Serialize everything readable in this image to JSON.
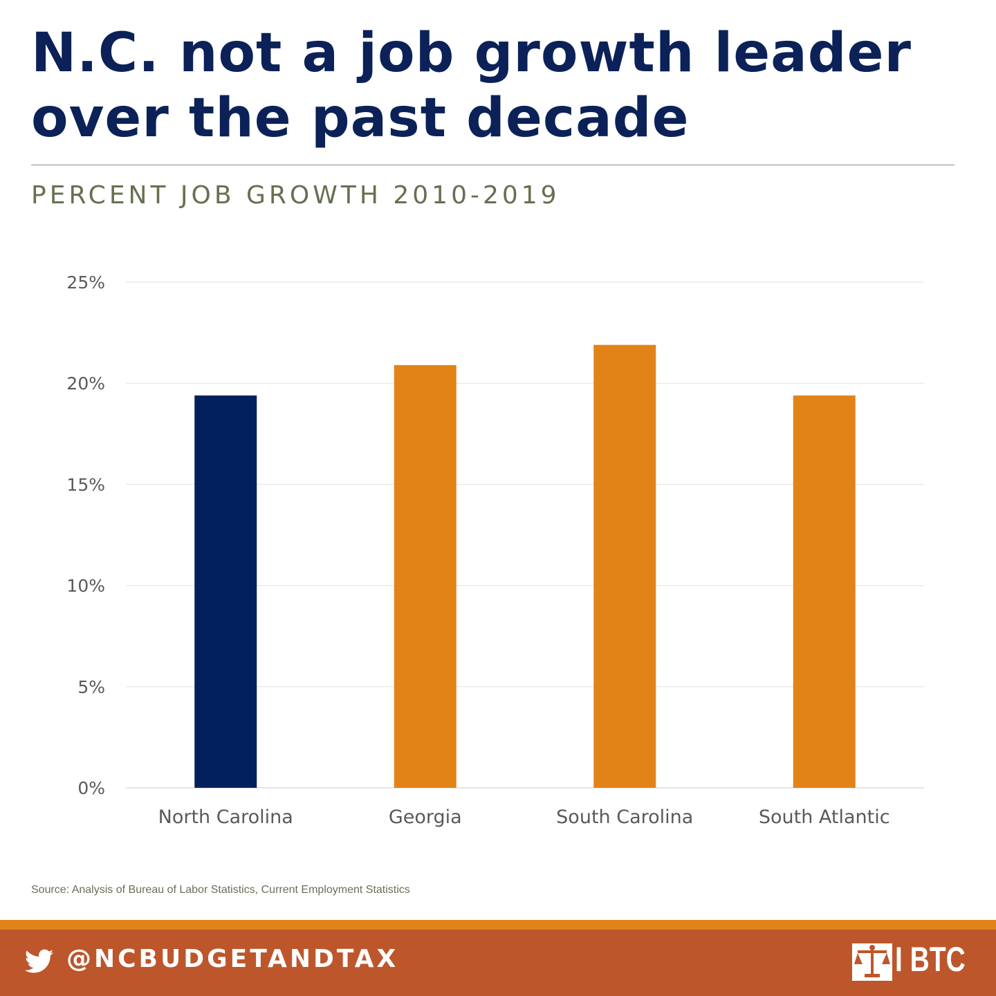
{
  "header": {
    "headline": "N.C. not a job growth leader over the past decade",
    "subtitle": "PERCENT JOB GROWTH 2010-2019"
  },
  "chart_data": {
    "type": "bar",
    "title": "PERCENT JOB GROWTH 2010-2019",
    "xlabel": "",
    "ylabel": "",
    "categories": [
      "North Carolina",
      "Georgia",
      "South Carolina",
      "South Atlantic"
    ],
    "values": [
      19.4,
      20.9,
      21.9,
      19.4
    ],
    "ylim": [
      0,
      25
    ],
    "yticks": [
      0,
      5,
      10,
      15,
      20,
      25
    ],
    "ytick_labels": [
      "0%",
      "5%",
      "10%",
      "15%",
      "20%",
      "25%"
    ],
    "grid": true,
    "legend": "none",
    "bar_colors": [
      "#03205e",
      "#e28318",
      "#e28318",
      "#e28318"
    ]
  },
  "colors": {
    "headline": "#0b2158",
    "subtitle": "#667051",
    "accent_orange": "#e28318",
    "footer_band": "#bd562b",
    "navy": "#03205e"
  },
  "source": "Source: Analysis of Bureau of Labor Statistics, Current Employment Statistics",
  "footer": {
    "twitter_icon": "twitter-bird-icon",
    "handle": "@NCBUDGETANDTAX",
    "logo_text": "BTC",
    "logo_mark": "scales-of-justice-seal"
  }
}
